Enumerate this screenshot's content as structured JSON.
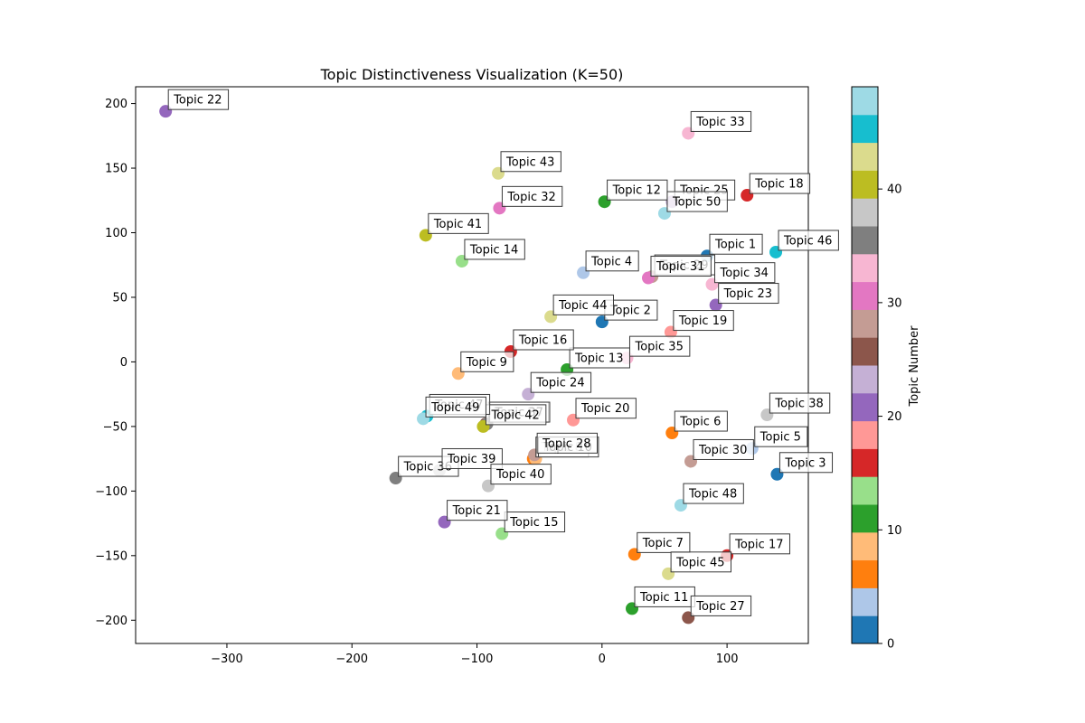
{
  "chart_data": {
    "type": "scatter",
    "title": "Topic Distinctiveness Visualization (K=50)",
    "xlabel": "",
    "ylabel": "",
    "xlim": [
      -373,
      165
    ],
    "ylim": [
      -218,
      213
    ],
    "xticks": [
      -300,
      -200,
      -100,
      0,
      100
    ],
    "yticks": [
      -200,
      -150,
      -100,
      -50,
      0,
      50,
      100,
      150,
      200
    ],
    "grid": false,
    "colormap": "tab20",
    "colorbar": {
      "label": "Topic Number",
      "range": [
        0,
        49
      ],
      "ticks": [
        0,
        10,
        20,
        30,
        40
      ]
    },
    "palette": [
      "#1f77b4",
      "#aec7e8",
      "#ff7f0e",
      "#ffbb78",
      "#2ca02c",
      "#98df8a",
      "#d62728",
      "#ff9896",
      "#9467bd",
      "#c5b0d5",
      "#8c564b",
      "#c49c94",
      "#e377c2",
      "#f7b6d2",
      "#7f7f7f",
      "#c7c7c7",
      "#bcbd22",
      "#dbdb8d",
      "#17becf",
      "#9edae5"
    ],
    "points": [
      {
        "label": "Topic 1",
        "x": 84,
        "y": 82,
        "topic": 0
      },
      {
        "label": "Topic 2",
        "x": 0,
        "y": 31,
        "topic": 1
      },
      {
        "label": "Topic 3",
        "x": 140,
        "y": -87,
        "topic": 2
      },
      {
        "label": "Topic 4",
        "x": -15,
        "y": 69,
        "topic": 3
      },
      {
        "label": "Topic 5",
        "x": 120,
        "y": -67,
        "topic": 4
      },
      {
        "label": "Topic 6",
        "x": 56,
        "y": -55,
        "topic": 5
      },
      {
        "label": "Topic 7",
        "x": 26,
        "y": -149,
        "topic": 6
      },
      {
        "label": "Topic 8",
        "x": -55,
        "y": -75,
        "topic": 7
      },
      {
        "label": "Topic 9",
        "x": -115,
        "y": -9,
        "topic": 8
      },
      {
        "label": "Topic 10",
        "x": -53,
        "y": -75,
        "topic": 9
      },
      {
        "label": "Topic 11",
        "x": 24,
        "y": -191,
        "topic": 10
      },
      {
        "label": "Topic 12",
        "x": 2,
        "y": 124,
        "topic": 11
      },
      {
        "label": "Topic 13",
        "x": -28,
        "y": -6,
        "topic": 12
      },
      {
        "label": "Topic 14",
        "x": -112,
        "y": 78,
        "topic": 13
      },
      {
        "label": "Topic 15",
        "x": -80,
        "y": -133,
        "topic": 14
      },
      {
        "label": "Topic 16",
        "x": -73,
        "y": 8,
        "topic": 15
      },
      {
        "label": "Topic 17",
        "x": 100,
        "y": -150,
        "topic": 16
      },
      {
        "label": "Topic 18",
        "x": 116,
        "y": 129,
        "topic": 17
      },
      {
        "label": "Topic 19",
        "x": 55,
        "y": 23,
        "topic": 18
      },
      {
        "label": "Topic 20",
        "x": -23,
        "y": -45,
        "topic": 19
      },
      {
        "label": "Topic 21",
        "x": -126,
        "y": -124,
        "topic": 20
      },
      {
        "label": "Topic 22",
        "x": -349,
        "y": 194,
        "topic": 21
      },
      {
        "label": "Topic 23",
        "x": 91,
        "y": 44,
        "topic": 22
      },
      {
        "label": "Topic 24",
        "x": -59,
        "y": -25,
        "topic": 23
      },
      {
        "label": "Topic 25",
        "x": 56,
        "y": 124,
        "topic": 24
      },
      {
        "label": "Topic 26",
        "x": -93,
        "y": -48,
        "topic": 25
      },
      {
        "label": "Topic 27",
        "x": 69,
        "y": -198,
        "topic": 26
      },
      {
        "label": "Topic 28",
        "x": -54,
        "y": -72,
        "topic": 27
      },
      {
        "label": "Topic 29",
        "x": 40,
        "y": 66,
        "topic": 28
      },
      {
        "label": "Topic 30",
        "x": 71,
        "y": -77,
        "topic": 29
      },
      {
        "label": "Topic 31",
        "x": 37,
        "y": 65,
        "topic": 30
      },
      {
        "label": "Topic 32",
        "x": -82,
        "y": 119,
        "topic": 31
      },
      {
        "label": "Topic 33",
        "x": 69,
        "y": 177,
        "topic": 32
      },
      {
        "label": "Topic 34",
        "x": 88,
        "y": 60,
        "topic": 33
      },
      {
        "label": "Topic 35",
        "x": 20,
        "y": 3,
        "topic": 34
      },
      {
        "label": "Topic 36",
        "x": -165,
        "y": -90,
        "topic": 35
      },
      {
        "label": "Topic 37",
        "x": -92,
        "y": -48,
        "topic": 36
      },
      {
        "label": "Topic 38",
        "x": 132,
        "y": -41,
        "topic": 37
      },
      {
        "label": "Topic 39",
        "x": -130,
        "y": -84,
        "topic": 38
      },
      {
        "label": "Topic 40",
        "x": -91,
        "y": -96,
        "topic": 39
      },
      {
        "label": "Topic 41",
        "x": -141,
        "y": 98,
        "topic": 40
      },
      {
        "label": "Topic 42",
        "x": -95,
        "y": -50,
        "topic": 41
      },
      {
        "label": "Topic 43",
        "x": -83,
        "y": 146,
        "topic": 42
      },
      {
        "label": "Topic 44",
        "x": -41,
        "y": 35,
        "topic": 43
      },
      {
        "label": "Topic 45",
        "x": 53,
        "y": -164,
        "topic": 44
      },
      {
        "label": "Topic 46",
        "x": 139,
        "y": 85,
        "topic": 45
      },
      {
        "label": "Topic 47",
        "x": -140,
        "y": -42,
        "topic": 46
      },
      {
        "label": "Topic 48",
        "x": 63,
        "y": -111,
        "topic": 47
      },
      {
        "label": "Topic 49",
        "x": -143,
        "y": -44,
        "topic": 48
      },
      {
        "label": "Topic 50",
        "x": 50,
        "y": 115,
        "topic": 49
      }
    ]
  }
}
